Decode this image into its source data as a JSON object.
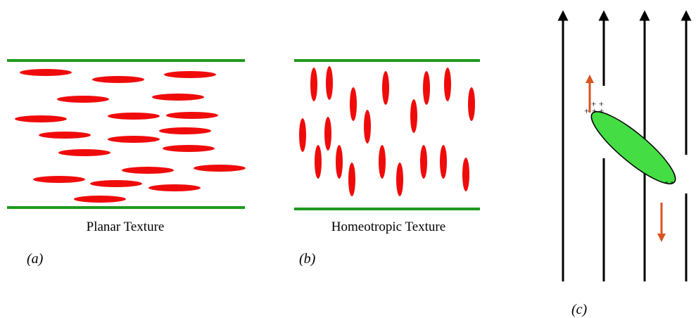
{
  "panels": [
    {
      "caption": "Planar Texture",
      "label": "(a)"
    },
    {
      "caption": "Homeotropic Texture",
      "label": "(b)"
    },
    {
      "label": "(c)"
    }
  ]
}
